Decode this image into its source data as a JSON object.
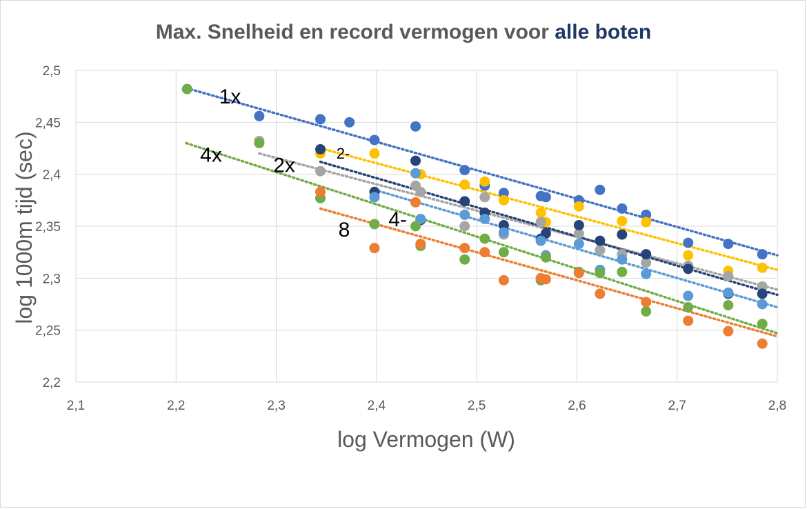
{
  "chart_data": {
    "type": "scatter",
    "title_parts": [
      "Max. Snelheid en record vermogen voor ",
      "alle boten"
    ],
    "xlabel": "log Vermogen (W)",
    "ylabel": "log 1000m tijd (sec)",
    "xlim": [
      2.1,
      2.8
    ],
    "ylim": [
      2.2,
      2.5
    ],
    "xticks": [
      2.1,
      2.2,
      2.3,
      2.4,
      2.5,
      2.6,
      2.7,
      2.8
    ],
    "yticks": [
      2.2,
      2.25,
      2.3,
      2.35,
      2.4,
      2.45,
      2.5
    ],
    "xtick_labels": [
      "2,1",
      "2,2",
      "2,3",
      "2,4",
      "2,5",
      "2,6",
      "2,7",
      "2,8"
    ],
    "ytick_labels": [
      "2,2",
      "2,25",
      "2,3",
      "2,35",
      "2,4",
      "2,45",
      "2,5"
    ],
    "grid": true,
    "legend": "none",
    "annotations": [
      {
        "text": "1x",
        "x": 2.243,
        "y": 2.468,
        "size": "large"
      },
      {
        "text": "2-",
        "x": 2.36,
        "y": 2.415,
        "size": "small"
      },
      {
        "text": "4x",
        "x": 2.224,
        "y": 2.412,
        "size": "large"
      },
      {
        "text": "2x",
        "x": 2.297,
        "y": 2.402,
        "size": "large"
      },
      {
        "text": "4-",
        "x": 2.412,
        "y": 2.35,
        "size": "large"
      },
      {
        "text": "8",
        "x": 2.362,
        "y": 2.34,
        "size": "large"
      }
    ],
    "series": [
      {
        "color": "#4472c4",
        "trend": [
          [
            2.21,
            2.483
          ],
          [
            2.8,
            2.322
          ]
        ],
        "points": [
          [
            2.211,
            2.482
          ],
          [
            2.283,
            2.456
          ],
          [
            2.344,
            2.453
          ],
          [
            2.373,
            2.45
          ],
          [
            2.398,
            2.433
          ],
          [
            2.439,
            2.446
          ],
          [
            2.488,
            2.404
          ],
          [
            2.508,
            2.389
          ],
          [
            2.527,
            2.382
          ],
          [
            2.564,
            2.379
          ],
          [
            2.569,
            2.378
          ],
          [
            2.602,
            2.375
          ],
          [
            2.623,
            2.385
          ],
          [
            2.645,
            2.367
          ],
          [
            2.669,
            2.361
          ],
          [
            2.711,
            2.334
          ],
          [
            2.751,
            2.333
          ],
          [
            2.785,
            2.323
          ]
        ]
      },
      {
        "color": "#ffc000",
        "trend": [
          [
            2.344,
            2.425
          ],
          [
            2.8,
            2.308
          ]
        ],
        "points": [
          [
            2.344,
            2.42
          ],
          [
            2.398,
            2.42
          ],
          [
            2.444,
            2.4
          ],
          [
            2.488,
            2.39
          ],
          [
            2.508,
            2.393
          ],
          [
            2.527,
            2.375
          ],
          [
            2.564,
            2.363
          ],
          [
            2.569,
            2.354
          ],
          [
            2.602,
            2.369
          ],
          [
            2.645,
            2.355
          ],
          [
            2.669,
            2.354
          ],
          [
            2.711,
            2.322
          ],
          [
            2.751,
            2.307
          ],
          [
            2.785,
            2.31
          ]
        ]
      },
      {
        "color": "#a5a5a5",
        "trend": [
          [
            2.283,
            2.42
          ],
          [
            2.8,
            2.289
          ]
        ],
        "points": [
          [
            2.283,
            2.432
          ],
          [
            2.344,
            2.403
          ],
          [
            2.439,
            2.389
          ],
          [
            2.444,
            2.383
          ],
          [
            2.488,
            2.35
          ],
          [
            2.508,
            2.378
          ],
          [
            2.527,
            2.342
          ],
          [
            2.564,
            2.354
          ],
          [
            2.602,
            2.343
          ],
          [
            2.623,
            2.327
          ],
          [
            2.645,
            2.323
          ],
          [
            2.669,
            2.315
          ],
          [
            2.711,
            2.312
          ],
          [
            2.751,
            2.302
          ],
          [
            2.785,
            2.292
          ]
        ]
      },
      {
        "color": "#264478",
        "trend": [
          [
            2.344,
            2.412
          ],
          [
            2.8,
            2.284
          ]
        ],
        "points": [
          [
            2.344,
            2.424
          ],
          [
            2.398,
            2.383
          ],
          [
            2.439,
            2.413
          ],
          [
            2.444,
            2.356
          ],
          [
            2.488,
            2.374
          ],
          [
            2.508,
            2.363
          ],
          [
            2.527,
            2.351
          ],
          [
            2.564,
            2.338
          ],
          [
            2.569,
            2.343
          ],
          [
            2.602,
            2.351
          ],
          [
            2.623,
            2.336
          ],
          [
            2.645,
            2.342
          ],
          [
            2.669,
            2.323
          ],
          [
            2.711,
            2.309
          ],
          [
            2.751,
            2.285
          ],
          [
            2.785,
            2.285
          ]
        ]
      },
      {
        "color": "#5b9bd5",
        "trend": [
          [
            2.398,
            2.385
          ],
          [
            2.8,
            2.272
          ]
        ],
        "points": [
          [
            2.398,
            2.378
          ],
          [
            2.439,
            2.401
          ],
          [
            2.444,
            2.357
          ],
          [
            2.488,
            2.361
          ],
          [
            2.508,
            2.357
          ],
          [
            2.527,
            2.344
          ],
          [
            2.564,
            2.336
          ],
          [
            2.569,
            2.322
          ],
          [
            2.602,
            2.333
          ],
          [
            2.623,
            2.308
          ],
          [
            2.645,
            2.318
          ],
          [
            2.669,
            2.304
          ],
          [
            2.711,
            2.283
          ],
          [
            2.751,
            2.286
          ],
          [
            2.785,
            2.275
          ]
        ]
      },
      {
        "color": "#70ad47",
        "trend": [
          [
            2.21,
            2.43
          ],
          [
            2.8,
            2.247
          ]
        ],
        "points": [
          [
            2.211,
            2.482
          ],
          [
            2.283,
            2.43
          ],
          [
            2.344,
            2.377
          ],
          [
            2.398,
            2.352
          ],
          [
            2.439,
            2.35
          ],
          [
            2.444,
            2.331
          ],
          [
            2.488,
            2.318
          ],
          [
            2.508,
            2.338
          ],
          [
            2.527,
            2.325
          ],
          [
            2.564,
            2.298
          ],
          [
            2.569,
            2.32
          ],
          [
            2.602,
            2.306
          ],
          [
            2.623,
            2.305
          ],
          [
            2.645,
            2.306
          ],
          [
            2.669,
            2.268
          ],
          [
            2.711,
            2.272
          ],
          [
            2.751,
            2.274
          ],
          [
            2.785,
            2.256
          ]
        ]
      },
      {
        "color": "#ed7d31",
        "trend": [
          [
            2.344,
            2.367
          ],
          [
            2.8,
            2.244
          ]
        ],
        "points": [
          [
            2.344,
            2.383
          ],
          [
            2.398,
            2.329
          ],
          [
            2.439,
            2.373
          ],
          [
            2.444,
            2.333
          ],
          [
            2.488,
            2.329
          ],
          [
            2.508,
            2.325
          ],
          [
            2.527,
            2.298
          ],
          [
            2.564,
            2.3
          ],
          [
            2.569,
            2.299
          ],
          [
            2.602,
            2.305
          ],
          [
            2.623,
            2.285
          ],
          [
            2.669,
            2.277
          ],
          [
            2.711,
            2.259
          ],
          [
            2.751,
            2.249
          ],
          [
            2.785,
            2.237
          ]
        ]
      }
    ]
  }
}
